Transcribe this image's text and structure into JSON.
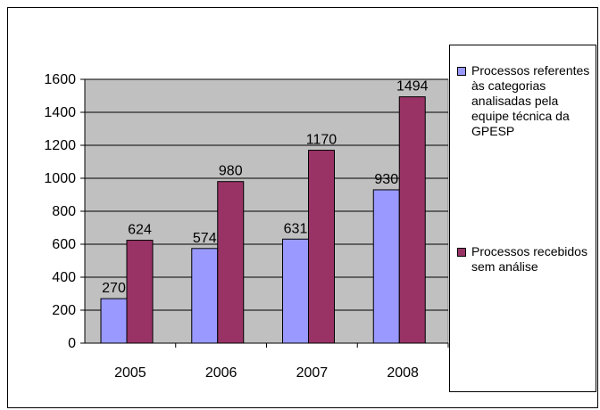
{
  "chart_data": {
    "type": "bar",
    "categories": [
      "2005",
      "2006",
      "2007",
      "2008"
    ],
    "series": [
      {
        "name": "Processos referentes às categorias analisadas pela equipe técnica da GPESP",
        "values": [
          270,
          574,
          631,
          930
        ],
        "color": "#9999ff"
      },
      {
        "name": "Processos recebidos sem análise",
        "values": [
          624,
          980,
          1170,
          1494
        ],
        "color": "#993366"
      }
    ],
    "data_labels": [
      [
        "270",
        "574",
        "631",
        "930"
      ],
      [
        "624",
        "980",
        "1170",
        "1494"
      ]
    ],
    "y_ticks": [
      "0",
      "200",
      "400",
      "600",
      "800",
      "1000",
      "1200",
      "1400",
      "1600"
    ],
    "ylim": [
      0,
      1600
    ],
    "grid": true,
    "plot_background": "#c0c0c0",
    "legend_position": "right",
    "title": "",
    "xlabel": "",
    "ylabel": ""
  }
}
